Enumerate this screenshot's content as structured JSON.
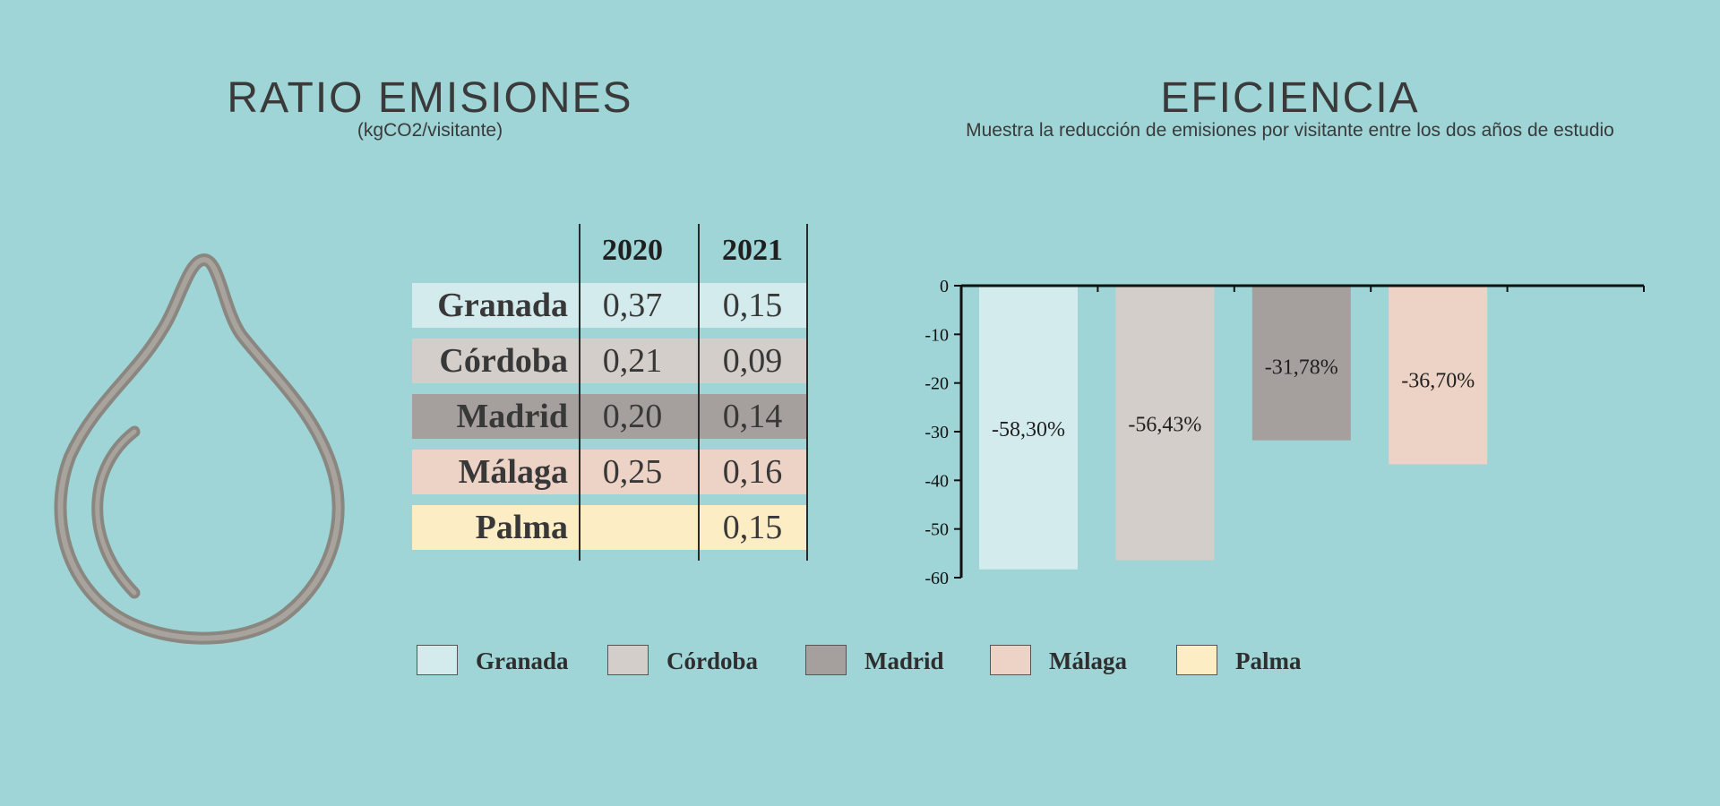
{
  "left_panel": {
    "title": "RATIO EMISIONES",
    "subtitle": "(kgCO2/visitante)",
    "icon": "water-drop-icon",
    "table": {
      "columns": [
        "2020",
        "2021"
      ],
      "rows": [
        {
          "city": "Granada",
          "v2020": "0,37",
          "v2021": "0,15",
          "color": "#d3ebec"
        },
        {
          "city": "Córdoba",
          "v2020": "0,21",
          "v2021": "0,09",
          "color": "#d3cec9"
        },
        {
          "city": "Madrid",
          "v2020": "0,20",
          "v2021": "0,14",
          "color": "#a5a09e"
        },
        {
          "city": "Málaga",
          "v2020": "0,25",
          "v2021": "0,16",
          "color": "#edd3c5"
        },
        {
          "city": "Palma",
          "v2020": "",
          "v2021": "0,15",
          "color": "#fdedc4"
        }
      ]
    }
  },
  "right_panel": {
    "title": "EFICIENCIA",
    "subtitle": "Muestra la reducción de emisiones por visitante entre los dos años de estudio"
  },
  "chart_data": {
    "type": "bar",
    "categories": [
      "Granada",
      "Córdoba",
      "Madrid",
      "Málaga",
      "Palma"
    ],
    "values": [
      -58.3,
      -56.43,
      -31.78,
      -36.7,
      null
    ],
    "data_labels": [
      "-58,30%",
      "-56,43%",
      "-31,78%",
      "-36,70%",
      ""
    ],
    "colors": [
      "#d3ebec",
      "#d3cec9",
      "#a5a09e",
      "#edd3c5",
      "#fdedc4"
    ],
    "ylim": [
      -60,
      0
    ],
    "yticks": [
      "0",
      "-10",
      "-20",
      "-30",
      "-40",
      "-50",
      "-60"
    ],
    "ytick_values": [
      0,
      -10,
      -20,
      -30,
      -40,
      -50,
      -60
    ],
    "xlabel": "",
    "ylabel": "",
    "legend_position": "bottom",
    "grid": false
  },
  "legend": {
    "items": [
      {
        "label": "Granada",
        "color": "#d3ebec"
      },
      {
        "label": "Córdoba",
        "color": "#d3cec9"
      },
      {
        "label": "Madrid",
        "color": "#a5a09e"
      },
      {
        "label": "Málaga",
        "color": "#edd3c5"
      },
      {
        "label": "Palma",
        "color": "#fdedc4"
      }
    ]
  }
}
